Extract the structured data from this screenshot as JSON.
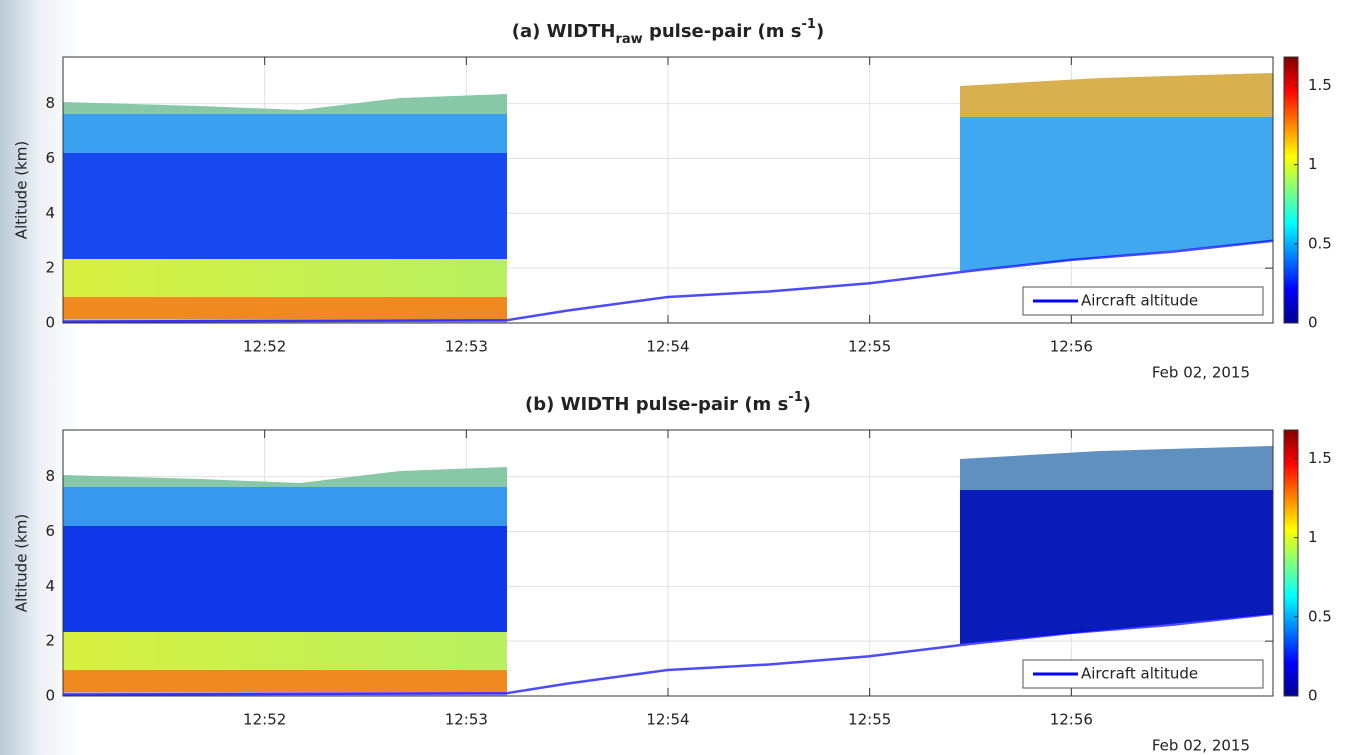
{
  "chart_data": [
    {
      "type": "line",
      "title": [
        "(a) WIDTH",
        "raw",
        " pulse-pair (m s",
        "-1",
        ")"
      ],
      "ylabel": "Altitude (km)",
      "date_label": "Feb 02, 2015",
      "xlim": [
        771,
        777
      ],
      "xticks": [
        {
          "value": 772,
          "label": "12:52"
        },
        {
          "value": 773,
          "label": "12:53"
        },
        {
          "value": 774,
          "label": "12:54"
        },
        {
          "value": 775,
          "label": "12:55"
        },
        {
          "value": 776,
          "label": "12:56"
        }
      ],
      "ylim": [
        0,
        9.7
      ],
      "yticks": [
        0,
        2,
        4,
        6,
        8
      ],
      "grid": true,
      "legend": "lower right",
      "x": [
        771,
        773.2,
        773.5,
        774,
        774.5,
        775,
        775.5,
        776,
        776.5,
        777
      ],
      "series": [
        {
          "name": "Aircraft altitude",
          "color": "#0000ff",
          "values": [
            0.05,
            0.1,
            0.45,
            0.95,
            1.15,
            1.45,
            1.9,
            2.3,
            2.6,
            3.0
          ]
        }
      ],
      "colorbar": {
        "lim": [
          0,
          1.68
        ],
        "ticks": [
          0,
          0.5,
          1,
          1.5
        ],
        "colormap": "jet"
      }
    },
    {
      "type": "line",
      "title": [
        "(b) WIDTH pulse-pair (m s",
        "-1",
        ")"
      ],
      "date_label": "Feb 02, 2015",
      "ylabel": "Altitude (km)",
      "xlim": [
        771,
        777
      ],
      "xticks": [
        {
          "value": 772,
          "label": "12:52"
        },
        {
          "value": 773,
          "label": "12:53"
        },
        {
          "value": 774,
          "label": "12:54"
        },
        {
          "value": 775,
          "label": "12:55"
        },
        {
          "value": 776,
          "label": "12:56"
        }
      ],
      "ylim": [
        0,
        9.7
      ],
      "yticks": [
        0,
        2,
        4,
        6,
        8
      ],
      "grid": true,
      "legend": "lower right",
      "x": [
        771,
        773.2,
        773.5,
        774,
        774.5,
        775,
        775.5,
        776,
        776.5,
        777
      ],
      "series": [
        {
          "name": "Aircraft altitude",
          "color": "#0000ff",
          "values": [
            0.05,
            0.1,
            0.45,
            0.95,
            1.15,
            1.45,
            1.9,
            2.3,
            2.6,
            3.0
          ]
        }
      ],
      "colorbar": {
        "lim": [
          0,
          1.68
        ],
        "ticks": [
          0,
          0.5,
          1,
          1.5
        ],
        "colormap": "jet"
      }
    }
  ]
}
